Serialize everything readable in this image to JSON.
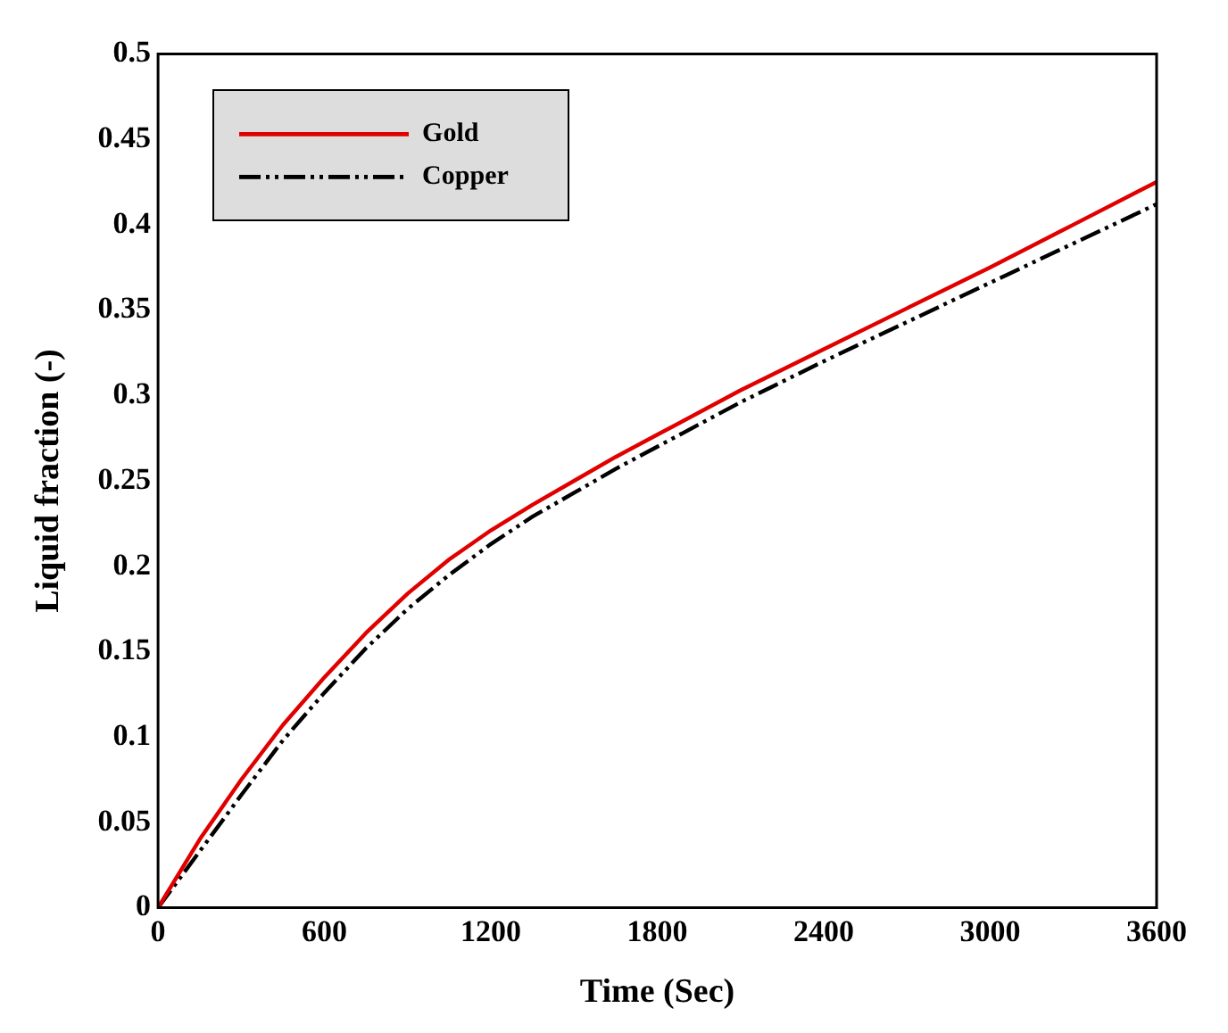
{
  "chart_data": {
    "type": "line",
    "xlabel": "Time (Sec)",
    "ylabel": "Liquid fraction (-)",
    "xlim": [
      0,
      3600
    ],
    "xticks": [
      0,
      600,
      1200,
      1800,
      2400,
      3000,
      3600
    ],
    "ylim": [
      0,
      0.5
    ],
    "yticks": [
      0,
      0.05,
      0.1,
      0.15,
      0.2,
      0.25,
      0.3,
      0.35,
      0.4,
      0.45,
      0.5
    ],
    "x": [
      0,
      150,
      300,
      450,
      600,
      750,
      900,
      1050,
      1200,
      1350,
      1500,
      1650,
      1800,
      2100,
      2400,
      2700,
      3000,
      3300,
      3600
    ],
    "series": [
      {
        "name": "Gold",
        "color": "#e00000",
        "line_style": "solid",
        "values": [
          0,
          0.04,
          0.075,
          0.107,
          0.135,
          0.161,
          0.184,
          0.204,
          0.221,
          0.236,
          0.25,
          0.264,
          0.277,
          0.303,
          0.327,
          0.351,
          0.375,
          0.4,
          0.425
        ]
      },
      {
        "name": "Copper",
        "color": "#000000",
        "line_style": "dashed",
        "values": [
          0,
          0.033,
          0.066,
          0.098,
          0.126,
          0.152,
          0.175,
          0.195,
          0.213,
          0.229,
          0.243,
          0.257,
          0.27,
          0.296,
          0.32,
          0.343,
          0.366,
          0.389,
          0.412
        ]
      }
    ],
    "legend": "top left",
    "grid": false,
    "marker": "none"
  }
}
